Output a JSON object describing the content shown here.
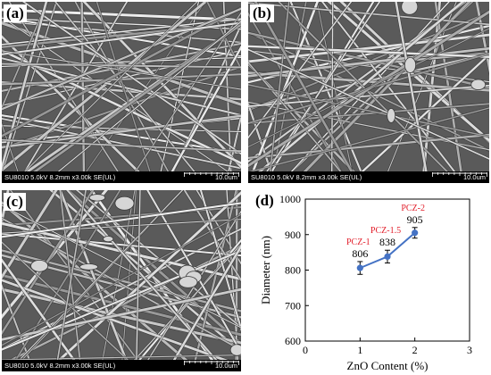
{
  "figure": {
    "panels": [
      {
        "id": "a",
        "letter": "(a)",
        "info": "SU8010 5.0kV 8.2mm x3.00k SE(UL)",
        "scale": "10.0um"
      },
      {
        "id": "b",
        "letter": "(b)",
        "info": "SU8010 5.0kV 8.2mm x3.00k SE(UL)",
        "scale": "10.0um"
      },
      {
        "id": "c",
        "letter": "(c)",
        "info": "SU8010 5.0kV 8.2mm x3.00k SE(UL)",
        "scale": "10.0um"
      }
    ],
    "chart_letter": "(d)"
  },
  "chart_data": {
    "type": "line",
    "title": "",
    "xlabel": "ZnO Content (%)",
    "ylabel": "Diameter (nm)",
    "xlim": [
      0,
      3
    ],
    "ylim": [
      600,
      1000
    ],
    "xticks": [
      "0",
      "1",
      "2",
      "3"
    ],
    "yticks": [
      "600",
      "700",
      "800",
      "900",
      "1000"
    ],
    "grid": false,
    "series": [
      {
        "x": [
          1,
          1.5,
          2
        ],
        "values": [
          806,
          838,
          905
        ],
        "errors": [
          18,
          18,
          15
        ],
        "point_labels": [
          "PCZ-1",
          "PCZ-1.5",
          "PCZ-2"
        ],
        "value_labels": [
          "806",
          "838",
          "905"
        ],
        "color": "#4472c4",
        "label_color": "#e2202c"
      }
    ]
  }
}
